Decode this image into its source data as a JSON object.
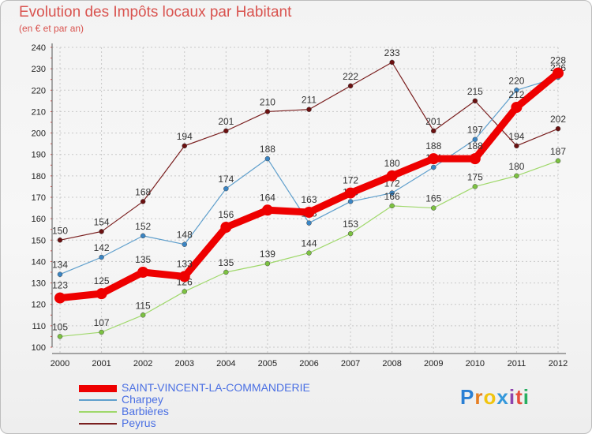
{
  "title": "Evolution des Impôts locaux par Habitant",
  "subtitle": "(en € et par an)",
  "logo": {
    "letters": [
      "P",
      "r",
      "o",
      "x",
      "i",
      "t",
      "i"
    ],
    "colors": [
      "#2a7fd4",
      "#e67e22",
      "#f1c40f",
      "#3498db",
      "#8e44ad",
      "#e74c3c",
      "#27ae60"
    ]
  },
  "chart_data": {
    "type": "line",
    "title": "Evolution des Impôts locaux par Habitant",
    "ylabel": "(en € et par an)",
    "xlabel": "",
    "ylim": [
      100,
      240
    ],
    "yticks": [
      100,
      110,
      120,
      130,
      140,
      150,
      160,
      170,
      180,
      190,
      200,
      210,
      220,
      230,
      240
    ],
    "x": [
      "2000",
      "2001",
      "2002",
      "2003",
      "2004",
      "2005",
      "2006",
      "2007",
      "2008",
      "2009",
      "2010",
      "2011",
      "2012"
    ],
    "series": [
      {
        "name": "Peyrus",
        "color": "#7a1f1f",
        "marker": "#6b1010",
        "width": 1.2,
        "values": [
          150,
          154,
          168,
          194,
          201,
          210,
          211,
          222,
          233,
          201,
          215,
          194,
          202
        ]
      },
      {
        "name": "Charpey",
        "color": "#5f9fcc",
        "marker": "#3a85c4",
        "width": 1.2,
        "values": [
          134,
          142,
          152,
          148,
          174,
          188,
          158,
          168,
          172,
          184,
          197,
          220,
          226
        ]
      },
      {
        "name": "Barbières",
        "color": "#9fd86a",
        "marker": "#7cc241",
        "width": 1.2,
        "values": [
          105,
          107,
          115,
          126,
          135,
          139,
          144,
          153,
          166,
          165,
          175,
          180,
          187
        ]
      },
      {
        "name": "SAINT-VINCENT-LA-COMMANDERIE",
        "color": "#ee0000",
        "marker": "#ee0000",
        "width": 9,
        "values": [
          123,
          125,
          135,
          133,
          156,
          164,
          163,
          172,
          180,
          188,
          188,
          212,
          228
        ]
      }
    ],
    "legend": [
      {
        "name": "SAINT-VINCENT-LA-COMMANDERIE",
        "color": "#ee0000",
        "width": 9
      },
      {
        "name": "Charpey",
        "color": "#5f9fcc",
        "width": 2
      },
      {
        "name": "Barbières",
        "color": "#9fd86a",
        "width": 2
      },
      {
        "name": "Peyrus",
        "color": "#7a1f1f",
        "width": 2
      }
    ]
  }
}
